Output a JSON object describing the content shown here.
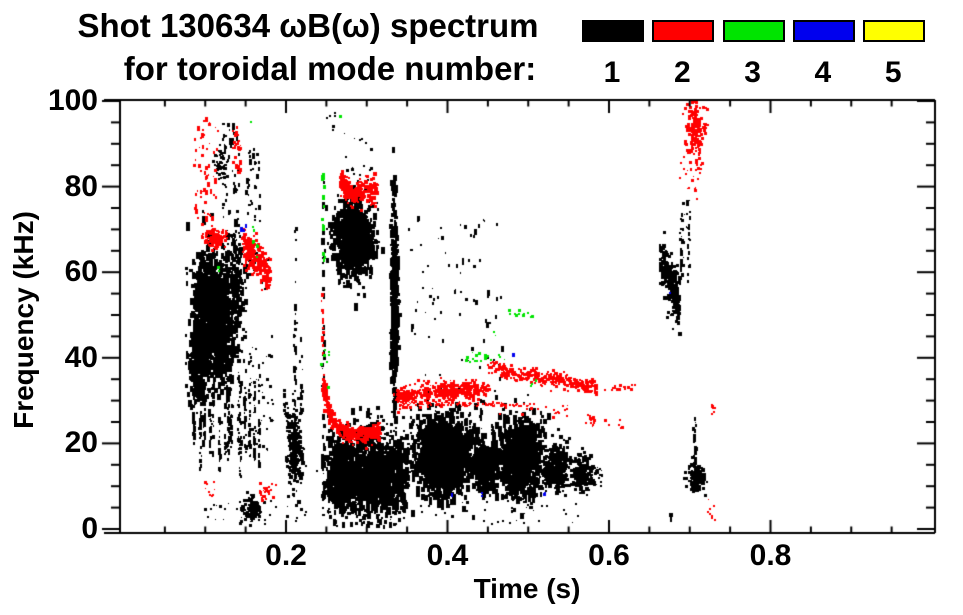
{
  "chart_data": {
    "type": "scatter-spectrogram",
    "title": "Shot 130634 ωB(ω) spectrum",
    "subtitle": "for toroidal mode number:",
    "xlabel": "Time (s)",
    "ylabel": "Frequency (kHz)",
    "xlim": [
      -0.007,
      1.011
    ],
    "ylim": [
      0,
      100
    ],
    "x_major_ticks": [
      0.2,
      0.4,
      0.6,
      0.8
    ],
    "x_tick_labels": [
      "0.2",
      "0.4",
      "0.6",
      "0.8"
    ],
    "x_minor_step": 0.05,
    "y_major_ticks": [
      0,
      20,
      40,
      60,
      80,
      100
    ],
    "y_tick_labels": [
      "0",
      "20",
      "40",
      "60",
      "80",
      "100"
    ],
    "y_minor_step": 5,
    "grid": false,
    "legend_position": "top-right",
    "legend": [
      {
        "label": "1",
        "color": "#000000"
      },
      {
        "label": "2",
        "color": "#ff0000"
      },
      {
        "label": "3",
        "color": "#00e400"
      },
      {
        "label": "4",
        "color": "#0000ee"
      },
      {
        "label": "5",
        "color": "#ffff00"
      }
    ],
    "clusters": [
      {
        "m": 1,
        "k": "gauss",
        "c": [
          0.105,
          52
        ],
        "s": [
          0.01,
          7
        ],
        "n": 700,
        "sz": 3,
        "vy": 2
      },
      {
        "m": 1,
        "k": "gauss",
        "c": [
          0.122,
          47
        ],
        "s": [
          0.008,
          8
        ],
        "n": 450,
        "sz": 3,
        "vy": 2
      },
      {
        "m": 1,
        "k": "gauss",
        "c": [
          0.092,
          38
        ],
        "s": [
          0.006,
          4.5
        ],
        "n": 260,
        "sz": 3,
        "vy": 1.5
      },
      {
        "m": 1,
        "k": "gauss",
        "c": [
          0.138,
          55
        ],
        "s": [
          0.006,
          6
        ],
        "n": 200,
        "sz": 2.6,
        "vy": 1.5
      },
      {
        "m": 1,
        "k": "comb",
        "t": [
          0.086,
          0.17
        ],
        "lines": 15,
        "ftop": [
          26,
          46
        ],
        "fbot": [
          11,
          20
        ],
        "n": 24,
        "sz": 2
      },
      {
        "m": 1,
        "k": "rect",
        "t": [
          0.146,
          0.185
        ],
        "f": [
          18,
          46
        ],
        "n": 50,
        "sz": 2
      },
      {
        "m": 1,
        "k": "rect",
        "t": [
          0.122,
          0.143
        ],
        "f": [
          62,
          95
        ],
        "n": 66,
        "sz": 2,
        "vy": 2
      },
      {
        "m": 1,
        "k": "rect",
        "t": [
          0.149,
          0.168
        ],
        "f": [
          72,
          90
        ],
        "n": 36,
        "sz": 2,
        "vy": 1.6
      },
      {
        "m": 1,
        "k": "gauss",
        "c": [
          0.119,
          85
        ],
        "s": [
          0.003,
          2
        ],
        "n": 50,
        "sz": 2.4
      },
      {
        "m": 1,
        "k": "gauss",
        "c": [
          0.158,
          4.5
        ],
        "s": [
          0.007,
          1.6
        ],
        "n": 110,
        "sz": 2.6
      },
      {
        "m": 1,
        "k": "rect",
        "t": [
          0.1,
          0.225
        ],
        "f": [
          1.5,
          6.5
        ],
        "n": 30,
        "sz": 2
      },
      {
        "m": 1,
        "k": "gauss",
        "c": [
          0.212,
          19
        ],
        "s": [
          0.005,
          4
        ],
        "n": 200,
        "sz": 2.8
      },
      {
        "m": 1,
        "k": "line",
        "p": [
          [
            0.197,
            30
          ],
          [
            0.205,
            24
          ],
          [
            0.212,
            19
          ]
        ],
        "w": 1.5,
        "n": 60,
        "sz": 2.4
      },
      {
        "m": 1,
        "k": "vline",
        "t": 0.2115,
        "f": [
          7,
          74
        ],
        "n": 40,
        "sz": 2
      },
      {
        "m": 1,
        "k": "vline",
        "t": 0.219,
        "f": [
          24,
          46
        ],
        "n": 12,
        "sz": 2
      },
      {
        "m": 1,
        "k": "vline",
        "t": 0.2465,
        "f": [
          2,
          52
        ],
        "n": 50,
        "sz": 2.2
      },
      {
        "m": 1,
        "k": "vline",
        "t": 0.2465,
        "f": [
          52,
          84
        ],
        "n": 12,
        "sz": 2
      },
      {
        "m": 1,
        "k": "vline",
        "t": 0.253,
        "f": [
          2,
          30
        ],
        "n": 25,
        "sz": 2
      },
      {
        "m": 1,
        "k": "gauss",
        "c": [
          0.284,
          67.5
        ],
        "s": [
          0.012,
          4.3
        ],
        "n": 780,
        "sz": 3,
        "vy": 1.6
      },
      {
        "m": 1,
        "k": "rect",
        "t": [
          0.27,
          0.307
        ],
        "f": [
          77,
          93
        ],
        "n": 22,
        "sz": 2
      },
      {
        "m": 1,
        "k": "gauss",
        "c": [
          0.27,
          12.5
        ],
        "s": [
          0.009,
          4.5
        ],
        "n": 460,
        "sz": 3,
        "vy": 1.8
      },
      {
        "m": 1,
        "k": "gauss",
        "c": [
          0.301,
          13
        ],
        "s": [
          0.011,
          5
        ],
        "n": 560,
        "sz": 3,
        "vy": 1.8
      },
      {
        "m": 1,
        "k": "gauss",
        "c": [
          0.33,
          12
        ],
        "s": [
          0.011,
          4.2
        ],
        "n": 460,
        "sz": 3,
        "vy": 1.8
      },
      {
        "m": 1,
        "k": "comb",
        "t": [
          0.255,
          0.345
        ],
        "lines": 8,
        "ftop": [
          20,
          27
        ],
        "fbot": [
          4,
          10
        ],
        "n": 14,
        "sz": 2
      },
      {
        "m": 1,
        "k": "rect",
        "t": [
          0.3,
          0.355
        ],
        "f": [
          22,
          28
        ],
        "n": 26,
        "sz": 2
      },
      {
        "m": 1,
        "k": "gauss",
        "c": [
          0.3345,
          53
        ],
        "s": [
          0.0022,
          12
        ],
        "n": 520,
        "sz": 2.8,
        "vy": 1.6
      },
      {
        "m": 1,
        "k": "rect",
        "t": [
          0.35,
          0.47
        ],
        "f": [
          28,
          73
        ],
        "n": 80,
        "sz": 2,
        "vy": 1.6
      },
      {
        "m": 1,
        "k": "gauss",
        "c": [
          0.395,
          17
        ],
        "s": [
          0.017,
          4.6
        ],
        "n": 1500,
        "sz": 3.2,
        "vy": 1.6
      },
      {
        "m": 1,
        "k": "gauss",
        "c": [
          0.448,
          15
        ],
        "s": [
          0.008,
          3
        ],
        "n": 300,
        "sz": 3,
        "vy": 1.5
      },
      {
        "m": 1,
        "k": "gauss",
        "c": [
          0.49,
          16.5
        ],
        "s": [
          0.013,
          4.4
        ],
        "n": 950,
        "sz": 3.2,
        "vy": 1.6
      },
      {
        "m": 1,
        "k": "gauss",
        "c": [
          0.535,
          14.5
        ],
        "s": [
          0.008,
          2.6
        ],
        "n": 350,
        "sz": 3
      },
      {
        "m": 1,
        "k": "gauss",
        "c": [
          0.566,
          13
        ],
        "s": [
          0.0062,
          1.9
        ],
        "n": 190,
        "sz": 3
      },
      {
        "m": 1,
        "k": "rect",
        "t": [
          0.576,
          0.592
        ],
        "f": [
          10,
          14.5
        ],
        "n": 26,
        "sz": 2.2
      },
      {
        "m": 1,
        "k": "comb",
        "t": [
          0.36,
          0.52
        ],
        "lines": 9,
        "ftop": [
          24,
          30
        ],
        "fbot": [
          20,
          23
        ],
        "n": 9,
        "sz": 2
      },
      {
        "m": 1,
        "k": "rect",
        "t": [
          0.28,
          0.57
        ],
        "f": [
          1,
          6.5
        ],
        "n": 48,
        "sz": 2
      },
      {
        "m": 1,
        "k": "line",
        "p": [
          [
            0.664,
            63
          ],
          [
            0.676,
            58.5
          ],
          [
            0.688,
            52.5
          ]
        ],
        "w": 3,
        "n": 260,
        "sz": 2.8
      },
      {
        "m": 1,
        "k": "comb",
        "t": [
          0.686,
          0.701
        ],
        "lines": 4,
        "ftop": [
          70,
          78
        ],
        "fbot": [
          53,
          62
        ],
        "n": 11,
        "sz": 2
      },
      {
        "m": 1,
        "k": "gauss",
        "c": [
          0.708,
          11.5
        ],
        "s": [
          0.005,
          1.6
        ],
        "n": 140,
        "sz": 2.8
      },
      {
        "m": 1,
        "k": "vline",
        "t": 0.7065,
        "f": [
          15,
          26
        ],
        "n": 16,
        "sz": 2.2
      },
      {
        "m": 1,
        "k": "vline",
        "t": 0.677,
        "f": [
          1.2,
          3.6
        ],
        "n": 6,
        "sz": 2.2
      },
      {
        "m": 1,
        "k": "rect",
        "t": [
          0.25,
          0.262
        ],
        "f": [
          93,
          98
        ],
        "n": 6,
        "sz": 2
      },
      {
        "m": 1,
        "k": "rect",
        "t": [
          0.152,
          0.182
        ],
        "f": [
          56,
          65
        ],
        "n": 24,
        "sz": 2
      },
      {
        "m": 2,
        "k": "rect",
        "t": [
          0.086,
          0.116
        ],
        "f": [
          72,
          96
        ],
        "n": 55,
        "sz": 2.2,
        "vy": 1.5
      },
      {
        "m": 2,
        "k": "rect",
        "t": [
          0.134,
          0.144
        ],
        "f": [
          83,
          94
        ],
        "n": 30,
        "sz": 2.2,
        "vy": 1.5
      },
      {
        "m": 2,
        "k": "gauss",
        "c": [
          0.113,
          68
        ],
        "s": [
          0.0075,
          1.2
        ],
        "n": 120,
        "sz": 2.5
      },
      {
        "m": 2,
        "k": "line",
        "p": [
          [
            0.147,
            66.5
          ],
          [
            0.158,
            64
          ],
          [
            0.169,
            61.5
          ],
          [
            0.18,
            59.5
          ]
        ],
        "w": 2.2,
        "n": 270,
        "sz": 2.6
      },
      {
        "m": 2,
        "k": "gauss",
        "c": [
          0.175,
          9
        ],
        "s": [
          0.004,
          1.3
        ],
        "n": 22,
        "sz": 2.2
      },
      {
        "m": 2,
        "k": "rect",
        "t": [
          0.098,
          0.113
        ],
        "f": [
          7.5,
          11
        ],
        "n": 10,
        "sz": 2.2
      },
      {
        "m": 2,
        "k": "vline",
        "t": 0.2455,
        "f": [
          40,
          56
        ],
        "n": 12,
        "sz": 2
      },
      {
        "m": 2,
        "k": "line",
        "p": [
          [
            0.2465,
            34
          ],
          [
            0.2505,
            29.5
          ],
          [
            0.256,
            26
          ],
          [
            0.263,
            23.8
          ],
          [
            0.272,
            22.7
          ],
          [
            0.285,
            22.1
          ],
          [
            0.3,
            22.1
          ],
          [
            0.317,
            22.8
          ]
        ],
        "w": 1.0,
        "n": 380,
        "sz": 2.6
      },
      {
        "m": 2,
        "k": "line",
        "p": [
          [
            0.268,
            81.3
          ],
          [
            0.275,
            79.4
          ],
          [
            0.281,
            78.2
          ],
          [
            0.29,
            78.8
          ],
          [
            0.299,
            79.3
          ],
          [
            0.307,
            78.3
          ],
          [
            0.313,
            78.7
          ]
        ],
        "w": 1.4,
        "n": 300,
        "sz": 2.6
      },
      {
        "m": 2,
        "k": "line",
        "p": [
          [
            0.337,
            30.6
          ],
          [
            0.37,
            31.6
          ],
          [
            0.4,
            32.1
          ],
          [
            0.43,
            32.6
          ],
          [
            0.452,
            32.9
          ]
        ],
        "w": 1.2,
        "n": 280,
        "sz": 2.4
      },
      {
        "m": 2,
        "k": "gauss",
        "c": [
          0.347,
          31
        ],
        "s": [
          0.006,
          0.9
        ],
        "n": 60,
        "sz": 2.4
      },
      {
        "m": 2,
        "k": "gauss",
        "c": [
          0.401,
          32.1
        ],
        "s": [
          0.007,
          0.9
        ],
        "n": 70,
        "sz": 2.4
      },
      {
        "m": 2,
        "k": "gauss",
        "c": [
          0.428,
          32.4
        ],
        "s": [
          0.006,
          0.9
        ],
        "n": 60,
        "sz": 2.4
      },
      {
        "m": 2,
        "k": "line",
        "p": [
          [
            0.452,
            37.6
          ],
          [
            0.468,
            37.2
          ],
          [
            0.474,
            36.2
          ],
          [
            0.504,
            36.0
          ],
          [
            0.511,
            35.1
          ],
          [
            0.54,
            34.9
          ],
          [
            0.549,
            34.2
          ],
          [
            0.559,
            33.8
          ],
          [
            0.586,
            33.2
          ]
        ],
        "w": 0.9,
        "n": 330,
        "sz": 2.4
      },
      {
        "m": 2,
        "k": "rect",
        "t": [
          0.592,
          0.634
        ],
        "f": [
          32.3,
          33.8
        ],
        "n": 22,
        "sz": 2.2
      },
      {
        "m": 2,
        "k": "line",
        "p": [
          [
            0.341,
            29.3
          ],
          [
            0.51,
            29.0
          ]
        ],
        "w": 0.25,
        "n": 130,
        "sz": 1.4
      },
      {
        "m": 2,
        "k": "rect",
        "t": [
          0.46,
          0.56
        ],
        "f": [
          26,
          29
        ],
        "n": 22,
        "sz": 2.2
      },
      {
        "m": 2,
        "k": "gauss",
        "c": [
          0.578,
          25.4
        ],
        "s": [
          0.004,
          0.6
        ],
        "n": 14,
        "sz": 2.2
      },
      {
        "m": 2,
        "k": "rect",
        "t": [
          0.595,
          0.62
        ],
        "f": [
          23.5,
          25.5
        ],
        "n": 6,
        "sz": 2.2
      },
      {
        "m": 2,
        "k": "gauss",
        "c": [
          0.708,
          93.5
        ],
        "s": [
          0.006,
          3.2
        ],
        "n": 170,
        "sz": 2.5
      },
      {
        "m": 2,
        "k": "rect",
        "t": [
          0.688,
          0.714
        ],
        "f": [
          77,
          89
        ],
        "n": 32,
        "sz": 2.2
      },
      {
        "m": 2,
        "k": "gauss",
        "c": [
          0.7275,
          28
        ],
        "s": [
          0.0015,
          0.8
        ],
        "n": 6,
        "sz": 2.2
      },
      {
        "m": 2,
        "k": "rect",
        "t": [
          0.722,
          0.733
        ],
        "f": [
          2,
          7
        ],
        "n": 8,
        "sz": 2.2
      },
      {
        "m": 3,
        "k": "vline",
        "t": 0.2465,
        "f": [
          62,
          84
        ],
        "n": 14,
        "sz": 2.2
      },
      {
        "m": 3,
        "k": "rect",
        "t": [
          0.243,
          0.253
        ],
        "f": [
          33,
          42
        ],
        "n": 8,
        "sz": 2.2
      },
      {
        "m": 3,
        "k": "rect",
        "t": [
          0.155,
          0.168
        ],
        "f": [
          63,
          71
        ],
        "n": 8,
        "sz": 2.2
      },
      {
        "m": 3,
        "k": "dots",
        "p": [
          [
            0.157,
            95
          ],
          [
            0.267,
            96.5
          ],
          [
            0.503,
            33.5
          ],
          [
            0.458,
            46
          ],
          [
            0.117,
            61
          ],
          [
            0.51,
            34.8
          ]
        ],
        "sz": 2.2
      },
      {
        "m": 3,
        "k": "line",
        "p": [
          [
            0.468,
            50.5
          ],
          [
            0.508,
            49.8
          ]
        ],
        "w": 0.5,
        "n": 12,
        "sz": 2.2
      },
      {
        "m": 3,
        "k": "rect",
        "t": [
          0.423,
          0.451
        ],
        "f": [
          39,
          41.5
        ],
        "n": 14,
        "sz": 2.2
      },
      {
        "m": 3,
        "k": "rect",
        "t": [
          0.452,
          0.472
        ],
        "f": [
          39.5,
          41
        ],
        "n": 5,
        "sz": 2
      },
      {
        "m": 4,
        "k": "dots",
        "p": [
          [
            0.1445,
            70.2
          ],
          [
            0.1475,
            69.6
          ],
          [
            0.1505,
            70.6
          ],
          [
            0.405,
            8.2
          ],
          [
            0.443,
            8.4
          ],
          [
            0.482,
            40.6
          ],
          [
            0.675,
            55
          ],
          [
            0.52,
            8.0
          ]
        ],
        "sz": 2.2
      }
    ]
  }
}
